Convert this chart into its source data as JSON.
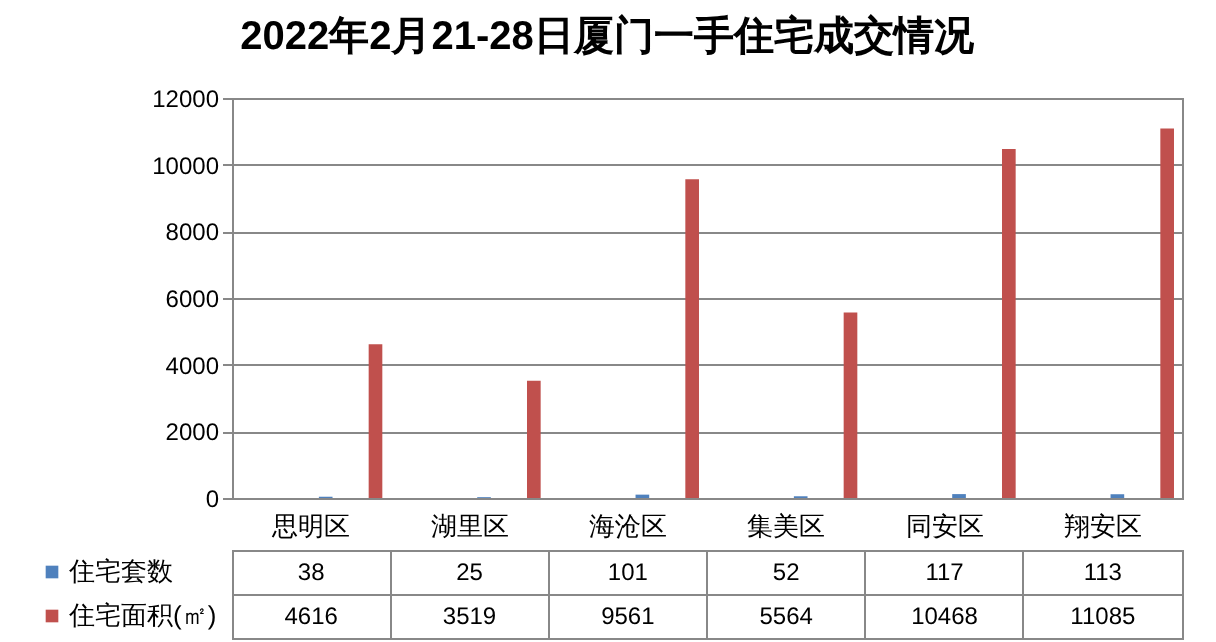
{
  "chart_data": {
    "type": "bar",
    "title": "2022年2月21-28日厦门一手住宅成交情况",
    "categories": [
      "思明区",
      "湖里区",
      "海沧区",
      "集美区",
      "同安区",
      "翔安区"
    ],
    "series": [
      {
        "name": "住宅套数",
        "color": "#4f81bd",
        "values": [
          38,
          25,
          101,
          52,
          117,
          113
        ]
      },
      {
        "name": "住宅面积(㎡)",
        "color": "#c0504d",
        "values": [
          4616,
          3519,
          9561,
          5564,
          10468,
          11085
        ]
      }
    ],
    "ylim": [
      0,
      12000
    ],
    "yticks": [
      0,
      2000,
      4000,
      6000,
      8000,
      10000,
      12000
    ],
    "grid": "y",
    "legend": "left",
    "data_labels": true
  }
}
